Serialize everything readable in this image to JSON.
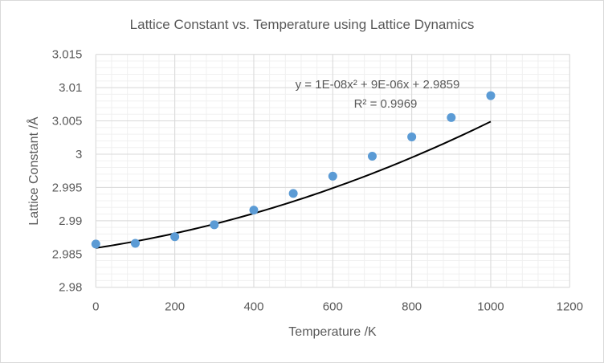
{
  "chart_data": {
    "type": "scatter",
    "title": "Lattice Constant vs. Temperature using Lattice Dynamics",
    "xlabel": "Temperature /K",
    "ylabel": "Lattice Constant /Å",
    "xlim": [
      0,
      1200
    ],
    "ylim": [
      2.98,
      3.015
    ],
    "x_ticks": [
      "0",
      "200",
      "400",
      "600",
      "800",
      "1000",
      "1200"
    ],
    "y_ticks": [
      "2.98",
      "2.985",
      "2.99",
      "2.995",
      "3",
      "3.005",
      "3.01",
      "3.015"
    ],
    "grid": "major and minor",
    "legend": "none",
    "series": [
      {
        "x": [
          0,
          100,
          200,
          300,
          400,
          500,
          600,
          700,
          800,
          900,
          1000
        ],
        "y": [
          2.9865,
          2.9866,
          2.9876,
          2.9894,
          2.9916,
          2.9941,
          2.9967,
          2.9997,
          3.0026,
          3.0055,
          3.0088
        ],
        "color": "#5B9BD5"
      }
    ],
    "trendline": {
      "type": "polynomial",
      "coefficients": [
        2.9859,
        9e-06,
        1e-08
      ],
      "equation_label": "y = 1E-08x² + 9E-06x + 2.9859",
      "r2_label": "R² = 0.9969",
      "color": "#000000"
    }
  }
}
